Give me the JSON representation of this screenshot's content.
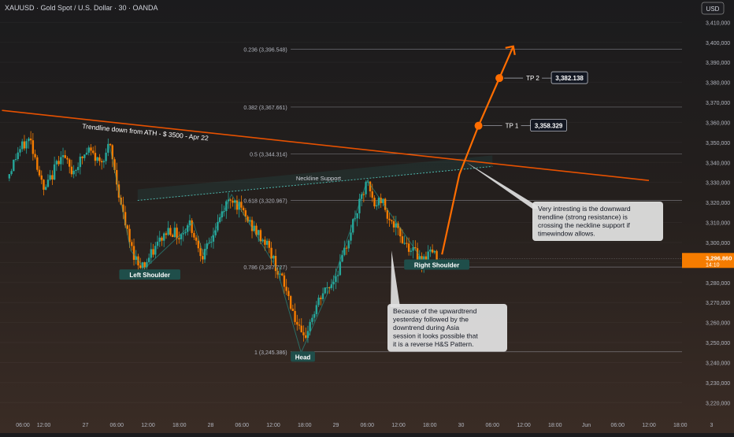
{
  "header": {
    "symbol_title": "XAUUSD · Gold Spot / U.S. Dollar · 30 · OANDA",
    "currency_button": "USD"
  },
  "price_scale": {
    "ticks": [
      "3,410,000",
      "3,400,000",
      "3,390,000",
      "3,380,000",
      "3,370,000",
      "3,360,000",
      "3,350,000",
      "3,340,000",
      "3,330,000",
      "3,320,000",
      "3,310,000",
      "3,300,000",
      "3,290,000",
      "3,280,000",
      "3,270,000",
      "3,260,000",
      "3,250,000",
      "3,240,000",
      "3,230,000",
      "3,220,000"
    ],
    "last_price_label": "3,296.860",
    "countdown_label": "14:10",
    "last_price_color": "#f57c00"
  },
  "time_axis": {
    "labels": [
      {
        "text": "06:00",
        "t": 0
      },
      {
        "text": "12:00",
        "t": 12
      },
      {
        "text": "27",
        "t": 36
      },
      {
        "text": "06:00",
        "t": 54
      },
      {
        "text": "12:00",
        "t": 72
      },
      {
        "text": "18:00",
        "t": 90
      },
      {
        "text": "28",
        "t": 108
      },
      {
        "text": "06:00",
        "t": 126
      },
      {
        "text": "12:00",
        "t": 144
      },
      {
        "text": "18:00",
        "t": 162
      },
      {
        "text": "29",
        "t": 180
      },
      {
        "text": "06:00",
        "t": 198
      },
      {
        "text": "12:00",
        "t": 216
      },
      {
        "text": "18:00",
        "t": 234
      },
      {
        "text": "30",
        "t": 252
      },
      {
        "text": "06:00",
        "t": 270
      },
      {
        "text": "12:00",
        "t": 288
      },
      {
        "text": "18:00",
        "t": 306
      },
      {
        "text": "Jun",
        "t": 324
      },
      {
        "text": "06:00",
        "t": 342
      },
      {
        "text": "12:00",
        "t": 360
      },
      {
        "text": "18:00",
        "t": 378
      },
      {
        "text": "3",
        "t": 396
      }
    ]
  },
  "chart_data": {
    "type": "candlestick",
    "symbol": "XAUUSD",
    "interval": "30",
    "x_unit": "hours from 06:00 on 26 May",
    "ylim": [
      3215,
      3418
    ],
    "colors": {
      "up": "#26a69a",
      "down": "#f57c00",
      "trend": "#e65100",
      "projection": "#ff6d00"
    },
    "price_path": [
      [
        -9,
        3332
      ],
      [
        -3,
        3345
      ],
      [
        4,
        3352
      ],
      [
        8,
        3340
      ],
      [
        12,
        3325
      ],
      [
        16,
        3332
      ],
      [
        22,
        3345
      ],
      [
        28,
        3335
      ],
      [
        34,
        3342
      ],
      [
        38,
        3346
      ],
      [
        44,
        3340
      ],
      [
        50,
        3348
      ],
      [
        54,
        3330
      ],
      [
        58,
        3312
      ],
      [
        62,
        3298
      ],
      [
        66,
        3290
      ],
      [
        70,
        3289
      ],
      [
        74,
        3294
      ],
      [
        78,
        3300
      ],
      [
        84,
        3307
      ],
      [
        90,
        3303
      ],
      [
        96,
        3310
      ],
      [
        100,
        3300
      ],
      [
        104,
        3293
      ],
      [
        110,
        3305
      ],
      [
        116,
        3318
      ],
      [
        120,
        3323
      ],
      [
        124,
        3318
      ],
      [
        130,
        3310
      ],
      [
        136,
        3303
      ],
      [
        140,
        3300
      ],
      [
        146,
        3287
      ],
      [
        152,
        3275
      ],
      [
        158,
        3258
      ],
      [
        161,
        3250
      ],
      [
        166,
        3262
      ],
      [
        172,
        3274
      ],
      [
        178,
        3280
      ],
      [
        184,
        3292
      ],
      [
        188,
        3305
      ],
      [
        194,
        3320
      ],
      [
        198,
        3330
      ],
      [
        202,
        3318
      ],
      [
        206,
        3322
      ],
      [
        212,
        3310
      ],
      [
        218,
        3302
      ],
      [
        224,
        3296
      ],
      [
        230,
        3291
      ],
      [
        234,
        3296
      ],
      [
        238,
        3292
      ]
    ],
    "candle_count": 200,
    "trendline": {
      "label": "Trendline down from ATH - $ 3500 - Apr 22",
      "start": [
        -12,
        3366
      ],
      "end": [
        360,
        3331
      ]
    },
    "neckline": {
      "label": "Neckline Support",
      "start": [
        66,
        3321
      ],
      "end": [
        270,
        3338
      ]
    },
    "fibonacci": [
      {
        "level": "0.236",
        "price": 3396.548,
        "label": "0.236 (3,396.548)"
      },
      {
        "level": "0.382",
        "price": 3367.661,
        "label": "0.382 (3,367.661)"
      },
      {
        "level": "0.5",
        "price": 3344.314,
        "label": "0.5 (3,344.314)"
      },
      {
        "level": "0.618",
        "price": 3320.967,
        "label": "0.618 (3,320.967)"
      },
      {
        "level": "0.786",
        "price": 3287.727,
        "label": "0.786 (3,287.727)"
      },
      {
        "level": "1",
        "price": 3245.386,
        "label": "1 (3,245.386)"
      }
    ],
    "projection": [
      [
        241,
        3294
      ],
      [
        251,
        3334
      ],
      [
        262,
        3358.3
      ],
      [
        274,
        3382.1
      ],
      [
        282,
        3398
      ]
    ],
    "targets": [
      {
        "name": "TP 2",
        "price": "3,382.138",
        "x": 274,
        "y": 3382.138
      },
      {
        "name": "TP 1",
        "price": "3,358.329",
        "x": 262,
        "y": 3358.329
      }
    ],
    "pattern_labels": [
      {
        "text": "Left Shoulder",
        "x": 73,
        "y": 3283
      },
      {
        "text": "Head",
        "x": 161,
        "y": 3242
      },
      {
        "text": "Right Shoulder",
        "x": 238,
        "y": 3288
      }
    ],
    "callouts": [
      {
        "lines": [
          "Very intresting is the downward",
          "trendline (strong resistance) is",
          "crossing the neckline support if",
          "timewindow allows."
        ],
        "anchor": [
          255,
          3340
        ]
      },
      {
        "lines": [
          "Because of the upwardtrend",
          "yesterday followed by the",
          "downtrend during Asia",
          "session it looks possible that",
          "it is a reverse H&S Pattern."
        ],
        "anchor": [
          212,
          3296
        ]
      }
    ]
  }
}
